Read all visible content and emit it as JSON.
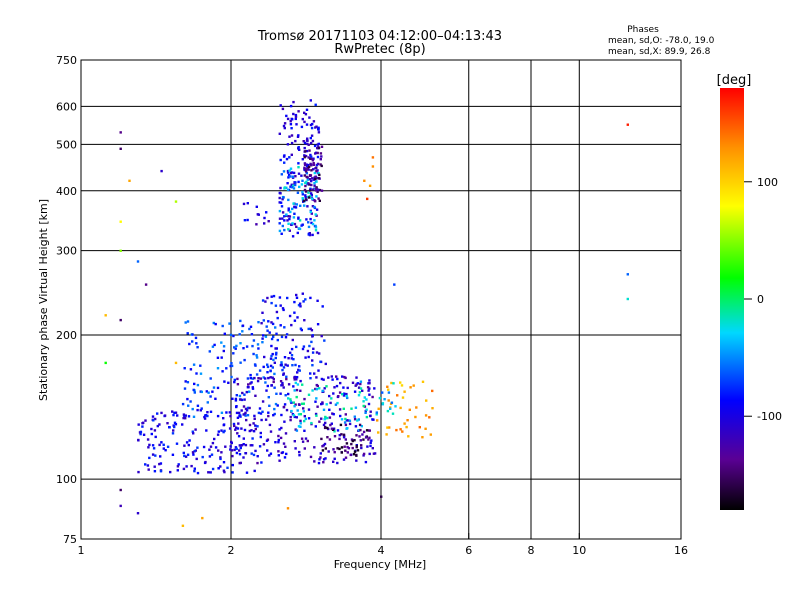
{
  "header": {
    "title_line1": "Tromsø 20171103 04:12:00–04:13:43",
    "title_line2": "RwPretec (8p)",
    "phases_label": "Phases",
    "phases_o": "mean, sd,O: -78.0, 19.0",
    "phases_x": "mean, sd,X:  89.9, 26.8"
  },
  "chart_data": {
    "type": "scatter",
    "xlabel": "Frequency [MHz]",
    "ylabel": "Stationary phase Virtual Height [km]",
    "xscale": "log",
    "yscale": "log",
    "xlim": [
      1,
      16
    ],
    "ylim": [
      75,
      750
    ],
    "xticks": [
      1,
      2,
      4,
      6,
      8,
      10,
      16
    ],
    "xtick_labels": [
      "1",
      "2",
      "4",
      "6",
      "8",
      "10",
      "16"
    ],
    "yticks": [
      75,
      100,
      200,
      300,
      400,
      500,
      600,
      750
    ],
    "ytick_labels": [
      "75",
      "100",
      "200",
      "300",
      "400",
      "500",
      "600",
      "750"
    ],
    "grid": true,
    "colorbar": {
      "label": "[deg]",
      "range": [
        -180,
        180
      ],
      "ticks": [
        100,
        0,
        -100
      ],
      "tick_labels": [
        "100",
        "0",
        "-100"
      ]
    },
    "clusters": [
      {
        "x": [
          2.5,
          3.0
        ],
        "y": [
          320,
          620
        ],
        "phase": -100,
        "n": 190
      },
      {
        "x": [
          2.5,
          3.0
        ],
        "y": [
          330,
          450
        ],
        "phase": -40,
        "n": 70
      },
      {
        "x": [
          2.8,
          3.05
        ],
        "y": [
          380,
          500
        ],
        "phase": -140,
        "n": 70
      },
      {
        "x": [
          2.1,
          2.4
        ],
        "y": [
          330,
          380
        ],
        "phase": -100,
        "n": 12
      },
      {
        "x": [
          1.3,
          2.3
        ],
        "y": [
          103,
          140
        ],
        "phase": -95,
        "n": 200
      },
      {
        "x": [
          1.6,
          2.6
        ],
        "y": [
          135,
          215
        ],
        "phase": -70,
        "n": 160
      },
      {
        "x": [
          2.0,
          3.9
        ],
        "y": [
          108,
          165
        ],
        "phase": -110,
        "n": 260
      },
      {
        "x": [
          2.3,
          3.1
        ],
        "y": [
          160,
          245
        ],
        "phase": -90,
        "n": 110
      },
      {
        "x": [
          2.6,
          3.8
        ],
        "y": [
          125,
          160
        ],
        "phase": -30,
        "n": 70
      },
      {
        "x": [
          3.0,
          3.8
        ],
        "y": [
          112,
          130
        ],
        "phase": -150,
        "n": 55
      },
      {
        "x": [
          3.9,
          5.1
        ],
        "y": [
          122,
          160
        ],
        "phase": 120,
        "n": 40
      },
      {
        "x": [
          3.9,
          4.3
        ],
        "y": [
          135,
          160
        ],
        "phase": -40,
        "n": 14
      }
    ],
    "points": [
      {
        "x": 1.2,
        "y": 530,
        "phase": -140
      },
      {
        "x": 1.2,
        "y": 490,
        "phase": -150
      },
      {
        "x": 1.25,
        "y": 420,
        "phase": 120
      },
      {
        "x": 1.2,
        "y": 345,
        "phase": 80
      },
      {
        "x": 1.2,
        "y": 300,
        "phase": 50
      },
      {
        "x": 1.3,
        "y": 285,
        "phase": -60
      },
      {
        "x": 1.45,
        "y": 440,
        "phase": -110
      },
      {
        "x": 1.55,
        "y": 380,
        "phase": 60
      },
      {
        "x": 1.35,
        "y": 255,
        "phase": -140
      },
      {
        "x": 1.2,
        "y": 215,
        "phase": -150
      },
      {
        "x": 1.12,
        "y": 220,
        "phase": 110
      },
      {
        "x": 1.12,
        "y": 175,
        "phase": 20
      },
      {
        "x": 1.55,
        "y": 175,
        "phase": 110
      },
      {
        "x": 1.2,
        "y": 95,
        "phase": -150
      },
      {
        "x": 1.2,
        "y": 88,
        "phase": -120
      },
      {
        "x": 1.3,
        "y": 85,
        "phase": -110
      },
      {
        "x": 1.6,
        "y": 80,
        "phase": 110
      },
      {
        "x": 1.75,
        "y": 83,
        "phase": 120
      },
      {
        "x": 2.6,
        "y": 87,
        "phase": 130
      },
      {
        "x": 4.0,
        "y": 92,
        "phase": -160
      },
      {
        "x": 3.85,
        "y": 470,
        "phase": 140
      },
      {
        "x": 3.85,
        "y": 450,
        "phase": 130
      },
      {
        "x": 3.7,
        "y": 420,
        "phase": 130
      },
      {
        "x": 3.8,
        "y": 410,
        "phase": 120
      },
      {
        "x": 3.75,
        "y": 385,
        "phase": 160
      },
      {
        "x": 4.25,
        "y": 255,
        "phase": -70
      },
      {
        "x": 12.5,
        "y": 550,
        "phase": 170
      },
      {
        "x": 12.5,
        "y": 268,
        "phase": -60
      },
      {
        "x": 12.5,
        "y": 238,
        "phase": -20
      }
    ]
  }
}
